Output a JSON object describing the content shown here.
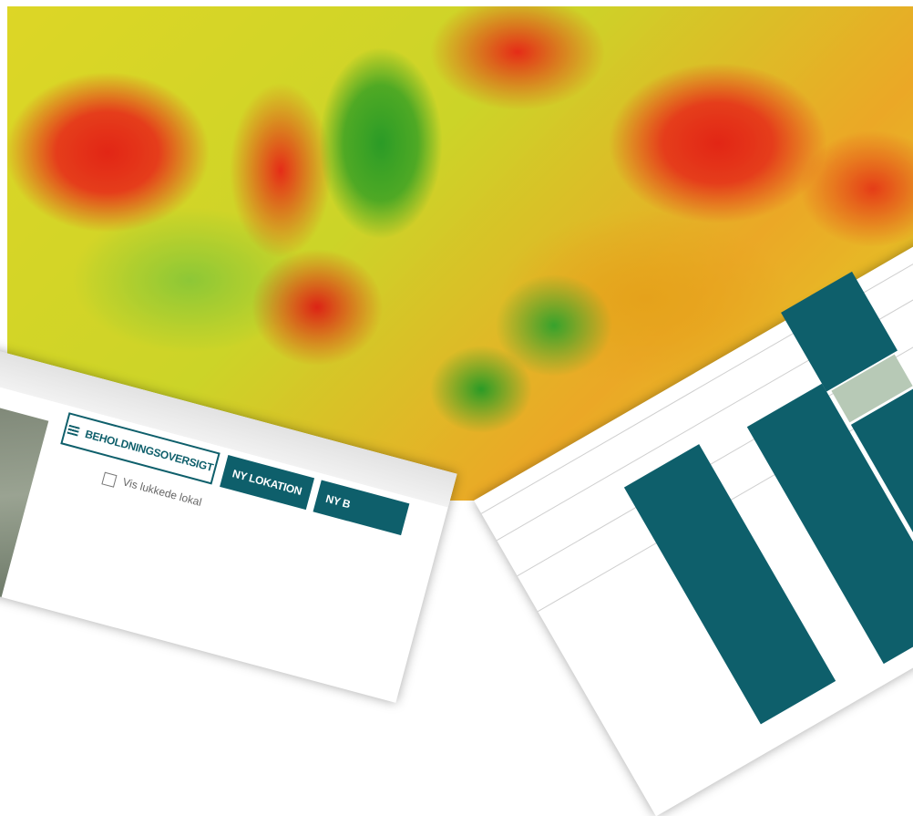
{
  "toolbar": {
    "buttons": [
      "BEHOLDNINGSOVERSIGT",
      "NY LOKATION",
      "NY B"
    ],
    "checkbox_label": "Vis lukkede lokal"
  }
}
